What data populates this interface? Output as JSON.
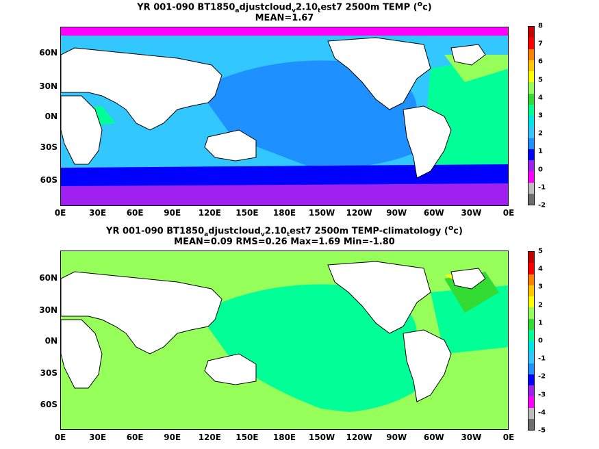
{
  "colorbar_colors": [
    "#6e6e6e",
    "#bdbdbd",
    "#ff00ff",
    "#a021ef",
    "#0000ff",
    "#1e90ff",
    "#32c8ff",
    "#00e6e6",
    "#00ff96",
    "#32dc32",
    "#96ff5a",
    "#ffff00",
    "#ffc800",
    "#ff8200",
    "#ff0000",
    "#c80000"
  ],
  "panels": [
    {
      "title_line1": {
        "pre": "YR 001-090 BT1850",
        "s1": "a",
        "mid": "djustcloud",
        "s2": "v",
        "mid2": "2.10",
        "s3": "t",
        "post": "est7 2500m TEMP (",
        "sup": "o",
        "end": "c)"
      },
      "title_line2": "MEAN=1.67",
      "colorbar_labels": [
        "8",
        "7",
        "6",
        "5",
        "4",
        "3",
        "2",
        "1",
        "0",
        "-1",
        "-2"
      ],
      "ocean_color": "#1e90ff",
      "deep_ocean_color": "#32c8ff"
    },
    {
      "title_line1": {
        "pre": "YR 001-090 BT1850",
        "s1": "a",
        "mid": "djustcloud",
        "s2": "v",
        "mid2": "2.10",
        "s3": "t",
        "post": "est7 2500m TEMP-climatology (",
        "sup": "o",
        "end": "c)"
      },
      "title_line2": "MEAN=0.09   RMS=0.26   Max=1.69   Min=-1.80",
      "colorbar_labels": [
        "5",
        "4",
        "3",
        "2",
        "1",
        "0",
        "-1",
        "-2",
        "-3",
        "-4",
        "-5"
      ],
      "ocean_color": "#00ff96",
      "deep_ocean_color": "#96ff5a"
    }
  ],
  "lat_labels": [
    "60N",
    "30N",
    "0N",
    "30S",
    "60S"
  ],
  "lon_labels": [
    "0E",
    "30E",
    "60E",
    "90E",
    "120E",
    "150E",
    "180E",
    "150W",
    "120W",
    "90W",
    "60W",
    "30W",
    "0E"
  ]
}
